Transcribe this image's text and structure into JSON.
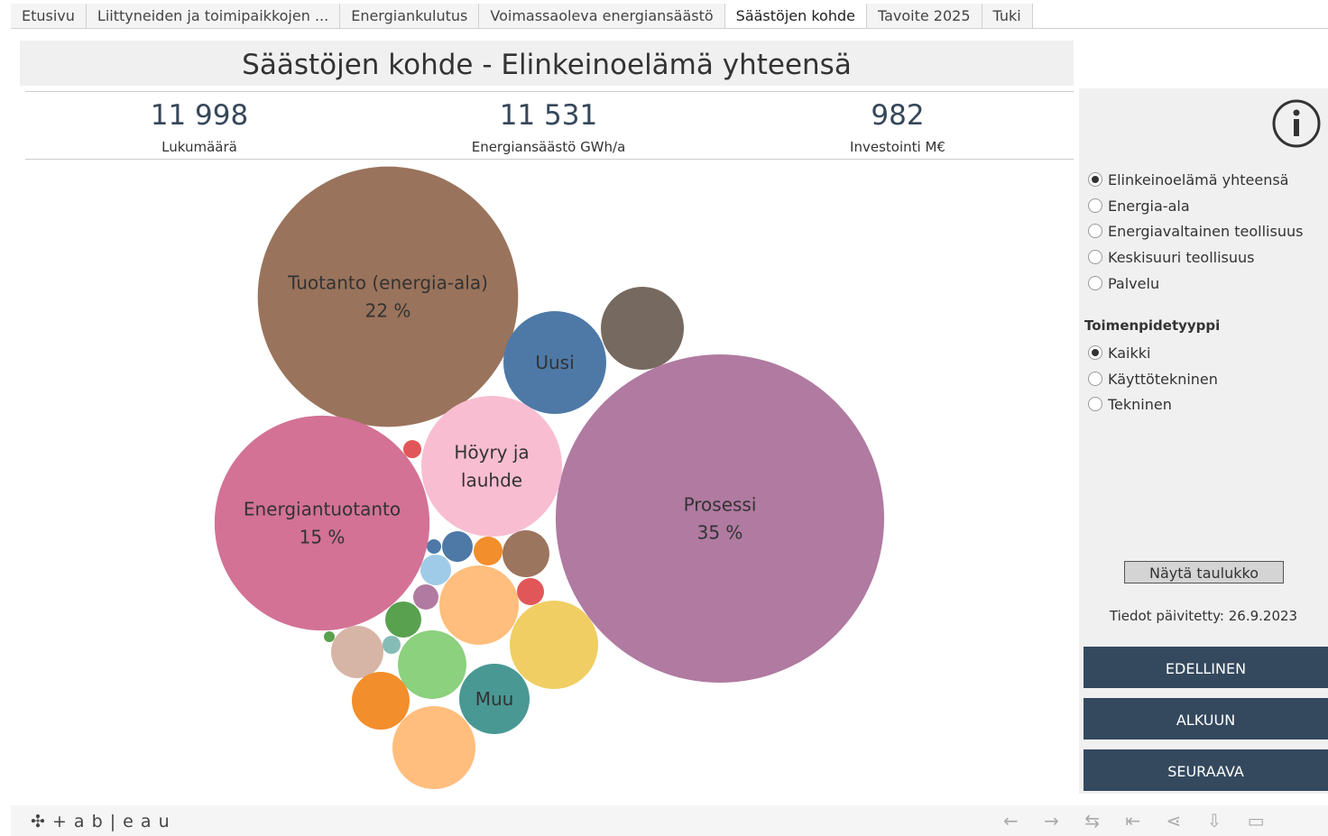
{
  "tabs": [
    "Etusivu",
    "Liittyneiden ja toimipaikkojen ...",
    "Energiankulutus",
    "Voimassaoleva energiansäästö",
    "Säästöjen kohde",
    "Tavoite 2025",
    "Tuki"
  ],
  "active_tab": 4,
  "title": "Säästöjen kohde - Elinkeinoelämä yhteensä",
  "kpis": [
    {
      "value": "11 998",
      "label": "Lukumäärä"
    },
    {
      "value": "11 531",
      "label": "Energiansäästö GWh/a"
    },
    {
      "value": "982",
      "label": "Investointi M€"
    }
  ],
  "bubbles": [
    {
      "label": [
        "Tuotanto (energia-ala)"
      ],
      "value": 22,
      "value_label": "22 %"
    },
    {
      "label": [
        "Uusi"
      ]
    },
    {
      "label": [
        "Prosessi"
      ],
      "value": 35,
      "value_label": "35 %"
    },
    {
      "label": [
        "Höyry ja",
        "lauhde"
      ]
    },
    {
      "label": [
        "Energiantuotanto"
      ],
      "value": 15,
      "value_label": "15 %"
    },
    {
      "label": [
        "Muu"
      ]
    }
  ],
  "sector_filter": {
    "options": [
      "Elinkeinoelämä yhteensä",
      "Energia-ala",
      "Energiavaltainen teollisuus",
      "Keskisuuri teollisuus",
      "Palvelu"
    ],
    "selected": 0
  },
  "measure_filter": {
    "heading": "Toimenpidetyyppi",
    "options": [
      "Kaikki",
      "Käyttötekninen",
      "Tekninen"
    ],
    "selected": 0
  },
  "table_button": "Näytä taulukko",
  "updated": "Tiedot päivitetty: 26.9.2023",
  "nav_buttons": [
    "EDELLINEN",
    "ALKUUN",
    "SEURAAVA"
  ],
  "footer_logo": "+ a b | e a u"
}
